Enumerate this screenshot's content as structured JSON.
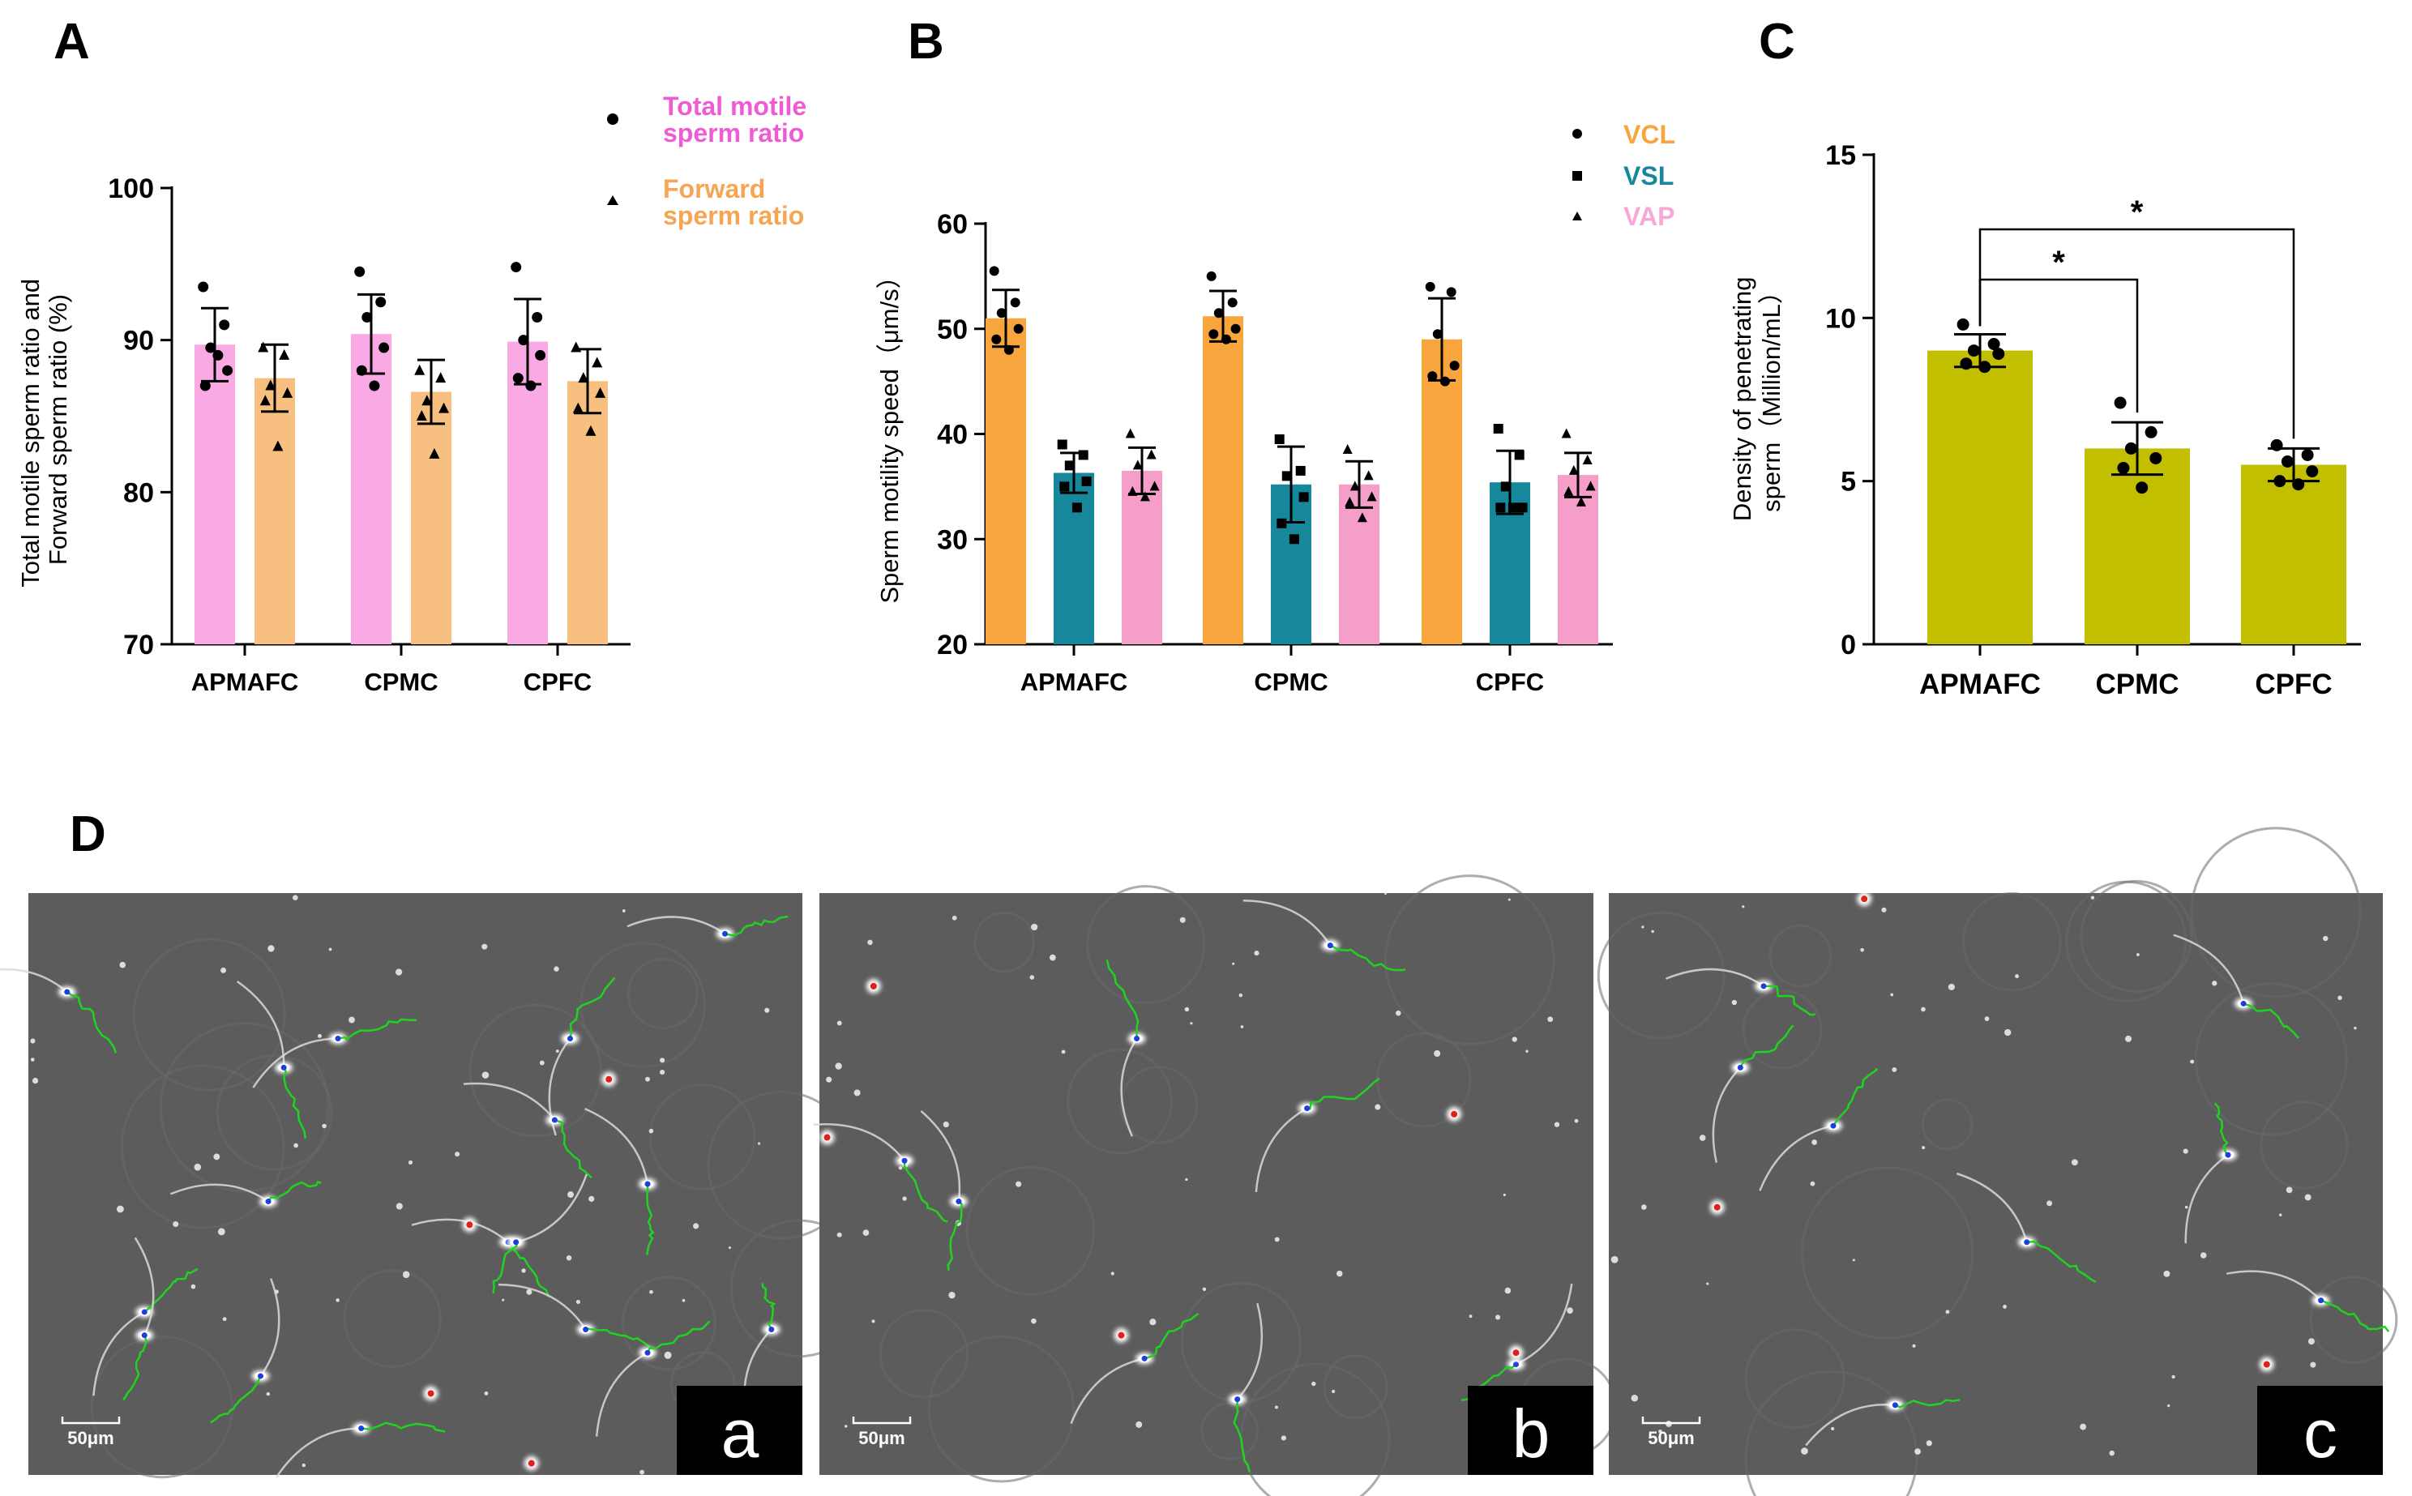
{
  "panels": {
    "A": "A",
    "B": "B",
    "C": "C",
    "D": "D"
  },
  "colors": {
    "total_motile": "#f9a9e4",
    "forward": "#f7c080",
    "vcl": "#f9a53e",
    "vsl": "#17889b",
    "vap": "#f49ec9",
    "density": "#c2bf00",
    "legend_total_text": "#f05bd4",
    "legend_forward_text": "#f6a552",
    "legend_vcl_text": "#f9a53e",
    "legend_vsl_text": "#17889b",
    "legend_vap_text": "#f8a8d4",
    "micro_bg": "#5c5c5c",
    "track": "#1fd31f"
  },
  "chart_data": [
    {
      "id": "A",
      "type": "bar",
      "categories": [
        "APMAFC",
        "CPMC",
        "CPFC"
      ],
      "ylabel_lines": [
        "Total motile sperm ratio and",
        "Forward sperm ratio (%)"
      ],
      "ylim": [
        70,
        100
      ],
      "yticks": [
        70,
        80,
        90,
        100
      ],
      "legend_placement": "top-right",
      "legend_text_lines": [
        [
          "Total motile",
          "sperm ratio"
        ],
        [
          "Forward",
          "sperm ratio"
        ]
      ],
      "series": [
        {
          "name": "Total motile sperm ratio",
          "marker": "circle",
          "values": [
            89.7,
            90.4,
            89.9
          ],
          "errors": [
            2.4,
            2.6,
            2.8
          ],
          "points": [
            [
              93.5,
              91.0,
              89.5,
              88.0,
              87.0,
              89.0
            ],
            [
              94.5,
              92.5,
              91.5,
              89.5,
              88.0,
              87.0
            ],
            [
              94.8,
              91.5,
              90.0,
              89.0,
              87.5,
              87.0
            ]
          ]
        },
        {
          "name": "Forward sperm ratio",
          "marker": "triangle",
          "values": [
            87.5,
            86.6,
            87.3
          ],
          "errors": [
            2.2,
            2.1,
            2.1
          ],
          "points": [
            [
              89.5,
              89.0,
              87.0,
              86.5,
              86.0,
              83.0
            ],
            [
              88.0,
              87.5,
              86.0,
              85.5,
              85.0,
              82.5
            ],
            [
              89.5,
              88.5,
              87.5,
              86.5,
              85.5,
              84.0
            ]
          ]
        }
      ]
    },
    {
      "id": "B",
      "type": "bar",
      "categories": [
        "APMAFC",
        "CPMC",
        "CPFC"
      ],
      "ylabel": "Sperm motility speed（μm/s）",
      "ylim": [
        20,
        60
      ],
      "yticks": [
        20,
        30,
        40,
        50,
        60
      ],
      "legend_placement": "top-right",
      "series": [
        {
          "name": "VCL",
          "marker": "circle",
          "values": [
            51.0,
            51.2,
            49.0
          ],
          "errors": [
            2.7,
            2.4,
            3.9
          ],
          "points": [
            [
              55.5,
              52.5,
              51.5,
              50.0,
              49.0,
              48.0
            ],
            [
              55.0,
              52.5,
              51.5,
              50.0,
              49.5,
              49.0
            ],
            [
              54.0,
              53.5,
              49.5,
              46.5,
              45.5,
              45.0
            ]
          ]
        },
        {
          "name": "VSL",
          "marker": "square",
          "values": [
            36.3,
            35.2,
            35.4
          ],
          "errors": [
            1.9,
            3.6,
            3.0
          ],
          "points": [
            [
              39.0,
              38.0,
              37.0,
              35.5,
              35.0,
              33.0
            ],
            [
              39.5,
              36.5,
              36.0,
              34.0,
              31.5,
              30.0
            ],
            [
              40.5,
              38.0,
              35.0,
              33.0,
              33.0,
              33.0
            ]
          ]
        },
        {
          "name": "VAP",
          "marker": "triangle",
          "values": [
            36.5,
            35.2,
            36.1
          ],
          "errors": [
            2.2,
            2.2,
            2.1
          ],
          "points": [
            [
              40.0,
              38.0,
              37.0,
              35.0,
              34.5,
              34.0
            ],
            [
              38.5,
              36.0,
              35.0,
              34.0,
              33.5,
              32.0
            ],
            [
              40.0,
              37.5,
              36.5,
              35.0,
              34.5,
              33.5
            ]
          ]
        }
      ]
    },
    {
      "id": "C",
      "type": "bar",
      "categories": [
        "APMAFC",
        "CPMC",
        "CPFC"
      ],
      "ylabel_lines": [
        "Density of penetrating",
        "sperm（Million/mL）"
      ],
      "ylim": [
        0,
        15
      ],
      "yticks": [
        0,
        5,
        10,
        15
      ],
      "series": [
        {
          "marker": "circle",
          "values": [
            9.0,
            6.0,
            5.5
          ],
          "errors": [
            0.5,
            0.8,
            0.5
          ],
          "points": [
            [
              9.8,
              9.2,
              9.0,
              8.9,
              8.6,
              8.5
            ],
            [
              7.4,
              6.5,
              6.0,
              5.7,
              5.4,
              4.8
            ],
            [
              6.1,
              5.8,
              5.6,
              5.3,
              5.0,
              4.9
            ]
          ]
        }
      ],
      "significance": [
        {
          "from": "APMAFC",
          "to": "CPMC",
          "label": "*"
        },
        {
          "from": "APMAFC",
          "to": "CPFC",
          "label": "*"
        }
      ]
    }
  ],
  "micrographs": [
    {
      "label": "a",
      "scale_bar": "50μm"
    },
    {
      "label": "b",
      "scale_bar": "50μm"
    },
    {
      "label": "c",
      "scale_bar": "50μm"
    }
  ]
}
